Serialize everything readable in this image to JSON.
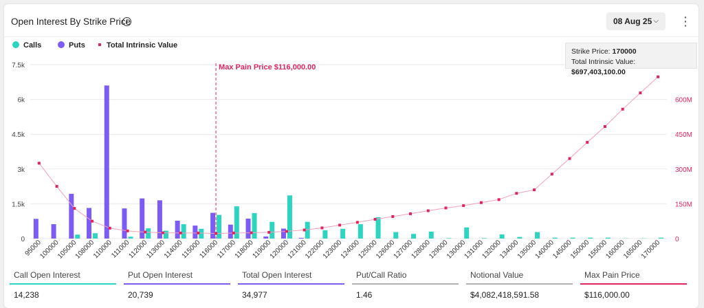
{
  "header": {
    "title": "Open Interest By Strike Price",
    "date": "08 Aug 25",
    "info_icon": "info-icon",
    "menu_icon": "kebab-icon"
  },
  "colors": {
    "calls": "#2dd4bf",
    "puts": "#7c5cf5",
    "intrinsic": "#e0245e",
    "grid": "#e9e9e9"
  },
  "tooltip": {
    "strike_label": "Strike Price:",
    "strike_value": "170000",
    "intrinsic_label": "Total Intrinsic Value:",
    "intrinsic_value": "$697,403,100.00"
  },
  "chart_data": {
    "type": "bar",
    "categories": [
      "95000",
      "100000",
      "105000",
      "108000",
      "110000",
      "111000",
      "112000",
      "113000",
      "114000",
      "115000",
      "116000",
      "117000",
      "118000",
      "119000",
      "120000",
      "121000",
      "122000",
      "123000",
      "124000",
      "125000",
      "126000",
      "127000",
      "128000",
      "129000",
      "130000",
      "131000",
      "132000",
      "134000",
      "135000",
      "140000",
      "145000",
      "150000",
      "155000",
      "160000",
      "165000",
      "170000"
    ],
    "series": [
      {
        "name": "Calls",
        "axis": "left",
        "type": "bar",
        "values": [
          0,
          0,
          170,
          230,
          0,
          80,
          440,
          340,
          620,
          420,
          1020,
          1390,
          1100,
          720,
          1860,
          720,
          360,
          420,
          620,
          920,
          280,
          200,
          300,
          20,
          480,
          20,
          180,
          70,
          280,
          40,
          40,
          40,
          40,
          10,
          10,
          40
        ]
      },
      {
        "name": "Puts",
        "axis": "left",
        "type": "bar",
        "values": [
          850,
          620,
          1930,
          1320,
          6600,
          1300,
          1730,
          1650,
          770,
          560,
          1110,
          600,
          860,
          90,
          430,
          30,
          0,
          0,
          0,
          0,
          0,
          0,
          0,
          0,
          0,
          0,
          0,
          0,
          0,
          0,
          0,
          0,
          0,
          0,
          0,
          0
        ]
      },
      {
        "name": "Total Intrinsic Value",
        "axis": "right",
        "type": "line",
        "values": [
          325000000,
          225000000,
          130000000,
          75000000,
          45000000,
          33000000,
          28000000,
          25000000,
          24000000,
          24000000,
          22000000,
          24000000,
          25000000,
          27000000,
          31000000,
          37000000,
          46000000,
          58000000,
          70000000,
          83000000,
          95000000,
          107000000,
          120000000,
          132000000,
          142000000,
          155000000,
          168000000,
          195000000,
          210000000,
          278000000,
          345000000,
          415000000,
          483000000,
          558000000,
          628000000,
          697403100
        ]
      }
    ],
    "y_left": {
      "ticks": [
        0,
        1500,
        3000,
        4500,
        6000,
        7500
      ],
      "tick_labels": [
        "0",
        "1.5k",
        "3k",
        "4.5k",
        "6k",
        "7.5k"
      ],
      "ylim": [
        0,
        7500
      ]
    },
    "y_right": {
      "ticks": [
        0,
        150000000,
        300000000,
        450000000,
        600000000
      ],
      "tick_labels": [
        "0",
        "150M",
        "300M",
        "450M",
        "600M"
      ],
      "ylim": [
        0,
        750000000
      ]
    },
    "max_pain": {
      "label": "Max Pain Price $116,000.00",
      "category": "116000"
    },
    "legend": {
      "placement": "top-left",
      "items": [
        "Calls",
        "Puts",
        "Total Intrinsic Value"
      ]
    },
    "grid": true
  },
  "stats": [
    {
      "label": "Call Open Interest",
      "value": "14,238",
      "color": "#2dd4bf"
    },
    {
      "label": "Put Open Interest",
      "value": "20,739",
      "color": "#7c5cf5"
    },
    {
      "label": "Total Open Interest",
      "value": "34,977",
      "color": "#7c5cf5"
    },
    {
      "label": "Put/Call Ratio",
      "value": "1.46",
      "color": "#b0b0b0"
    },
    {
      "label": "Notional Value",
      "value": "$4,082,418,591.58",
      "color": "#b0b0b0"
    },
    {
      "label": "Max Pain Price",
      "value": "$116,000.00",
      "color": "#e0245e"
    }
  ]
}
